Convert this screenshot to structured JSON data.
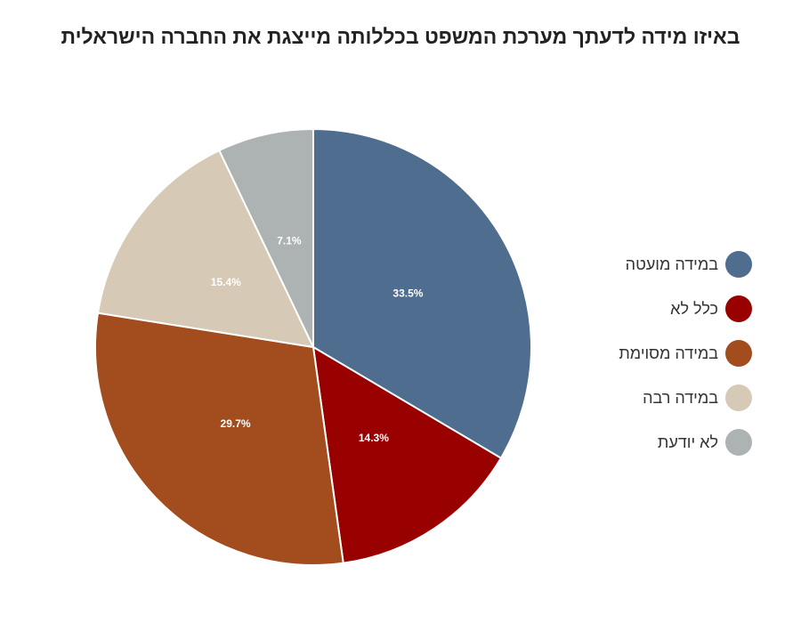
{
  "chart_data": {
    "type": "pie",
    "title": "באיזו מידה לדעתך מערכת המשפט בכללותה מייצגת את החברה הישראלית",
    "categories": [
      "במידה מועטה",
      "כלל לא",
      "במידה מסוימת",
      "במידה רבה",
      "לא יודעת"
    ],
    "values": [
      33.5,
      14.3,
      29.7,
      15.4,
      7.1
    ],
    "value_labels": [
      "33.5%",
      "14.3%",
      "29.7%",
      "15.4%",
      "7.1%"
    ],
    "colors": [
      "#4f6d8f",
      "#990000",
      "#a34d1f",
      "#d6cab6",
      "#adb3b3"
    ],
    "legend_position": "right"
  }
}
